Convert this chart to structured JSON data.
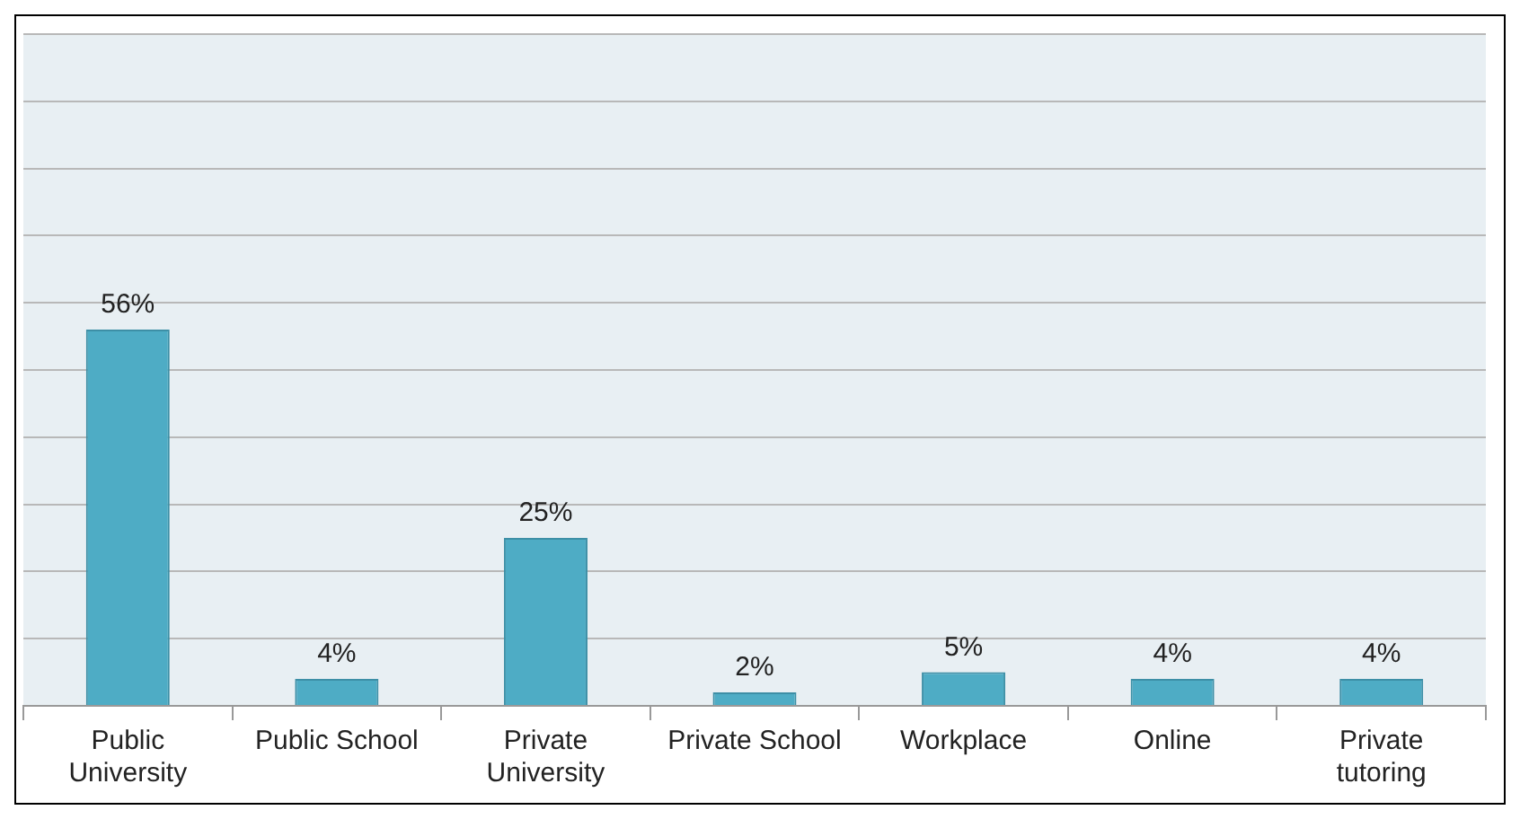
{
  "chart_data": {
    "type": "bar",
    "categories": [
      "Public University",
      "Public School",
      "Private University",
      "Private School",
      "Workplace",
      "Online",
      "Private tutoring"
    ],
    "values": [
      56,
      4,
      25,
      2,
      5,
      4,
      4
    ],
    "value_labels": [
      "56%",
      "4%",
      "25%",
      "2%",
      "5%",
      "4%",
      "4%"
    ],
    "color": "#4eacc5",
    "ylim": [
      0,
      100
    ],
    "yticks": [
      {
        "value": 0,
        "label": null
      },
      {
        "value": 10,
        "label": null
      },
      {
        "value": 20,
        "label": null
      },
      {
        "value": 30,
        "label": null
      },
      {
        "value": 40,
        "label": null
      },
      {
        "value": 50,
        "label": null
      },
      {
        "value": 60,
        "label": null
      },
      {
        "value": 70,
        "label": null
      },
      {
        "value": 80,
        "label": null
      },
      {
        "value": 90,
        "label": null
      },
      {
        "value": 100,
        "label": null
      }
    ],
    "tick_labels": "x",
    "grid": "y"
  }
}
